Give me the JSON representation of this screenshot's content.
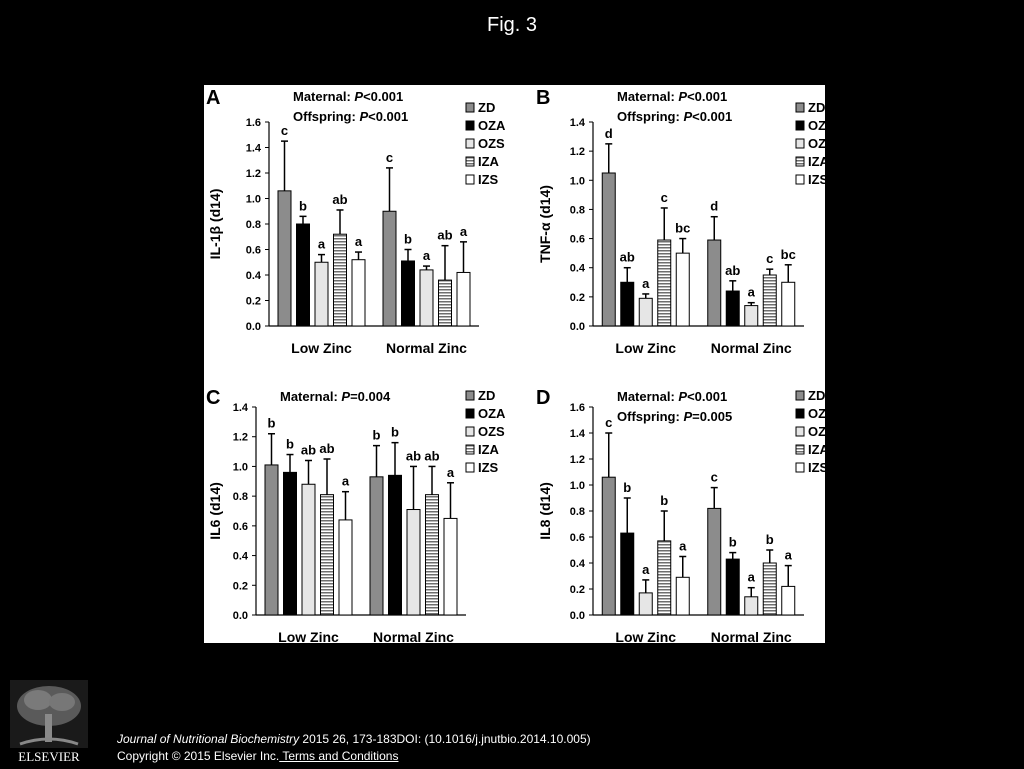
{
  "slide": {
    "title": "Fig. 3"
  },
  "citation": {
    "journal": "Journal of Nutritional Biochemistry",
    "details": " 2015 26, 173-183DOI: (10.1016/j.jnutbio.2014.10.005)",
    "copyright": "Copyright © 2015 Elsevier Inc.",
    "terms_link": " Terms and Conditions"
  },
  "logo": {
    "text": "ELSEVIER",
    "icon": "elsevier-tree-logo"
  },
  "legend_entries": [
    "ZD",
    "OZA",
    "OZS",
    "IZA",
    "IZS"
  ],
  "series_fills": {
    "ZD": "#8c8c8c",
    "OZA": "#000000",
    "OZS": "#e6e6e6",
    "IZA": "hatched-gray",
    "IZS": "#ffffff"
  },
  "chart_data": [
    {
      "panel": "A",
      "type": "bar",
      "stats": [
        {
          "prefix": "Maternal: ",
          "p": "P",
          "value": "<0.001"
        },
        {
          "prefix": "Offspring: ",
          "p": "P",
          "value": "<0.001"
        }
      ],
      "ylabel": "IL-1β (d14)",
      "ylim": [
        0,
        1.6
      ],
      "yticks": [
        "0.0",
        "0.2",
        "0.4",
        "0.6",
        "0.8",
        "1.0",
        "1.2",
        "1.4",
        "1.6"
      ],
      "categories": [
        "Low Zinc",
        "Normal Zinc"
      ],
      "series": [
        {
          "name": "ZD",
          "values": [
            1.06,
            0.9
          ],
          "errors": [
            0.39,
            0.34
          ],
          "letters": [
            "c",
            "c"
          ]
        },
        {
          "name": "OZA",
          "values": [
            0.8,
            0.51
          ],
          "errors": [
            0.06,
            0.09
          ],
          "letters": [
            "b",
            "b"
          ]
        },
        {
          "name": "OZS",
          "values": [
            0.5,
            0.44
          ],
          "errors": [
            0.06,
            0.03
          ],
          "letters": [
            "a",
            "a"
          ]
        },
        {
          "name": "IZA",
          "values": [
            0.72,
            0.36
          ],
          "errors": [
            0.19,
            0.27
          ],
          "letters": [
            "ab",
            "ab"
          ]
        },
        {
          "name": "IZS",
          "values": [
            0.52,
            0.42
          ],
          "errors": [
            0.06,
            0.24
          ],
          "letters": [
            "a",
            "a"
          ]
        }
      ]
    },
    {
      "panel": "B",
      "type": "bar",
      "stats": [
        {
          "prefix": "Maternal: ",
          "p": "P",
          "value": "<0.001"
        },
        {
          "prefix": "Offspring: ",
          "p": "P",
          "value": "<0.001"
        }
      ],
      "ylabel": "TNF-α (d14)",
      "ylim": [
        0,
        1.4
      ],
      "yticks": [
        "0.0",
        "0.2",
        "0.4",
        "0.6",
        "0.8",
        "1.0",
        "1.2",
        "1.4"
      ],
      "categories": [
        "Low Zinc",
        "Normal Zinc"
      ],
      "series": [
        {
          "name": "ZD",
          "values": [
            1.05,
            0.59
          ],
          "errors": [
            0.2,
            0.16
          ],
          "letters": [
            "d",
            "d"
          ]
        },
        {
          "name": "OZA",
          "values": [
            0.3,
            0.24
          ],
          "errors": [
            0.1,
            0.07
          ],
          "letters": [
            "ab",
            "ab"
          ]
        },
        {
          "name": "OZS",
          "values": [
            0.19,
            0.14
          ],
          "errors": [
            0.03,
            0.02
          ],
          "letters": [
            "a",
            "a"
          ]
        },
        {
          "name": "IZA",
          "values": [
            0.59,
            0.35
          ],
          "errors": [
            0.22,
            0.04
          ],
          "letters": [
            "c",
            "c"
          ]
        },
        {
          "name": "IZS",
          "values": [
            0.5,
            0.3
          ],
          "errors": [
            0.1,
            0.12
          ],
          "letters": [
            "bc",
            "bc"
          ]
        }
      ]
    },
    {
      "panel": "C",
      "type": "bar",
      "stats": [
        {
          "prefix": "Maternal: ",
          "p": "P",
          "value": "=0.004"
        }
      ],
      "ylabel": "IL6 (d14)",
      "ylim": [
        0,
        1.4
      ],
      "yticks": [
        "0.0",
        "0.2",
        "0.4",
        "0.6",
        "0.8",
        "1.0",
        "1.2",
        "1.4"
      ],
      "categories": [
        "Low Zinc",
        "Normal Zinc"
      ],
      "series": [
        {
          "name": "ZD",
          "values": [
            1.01,
            0.93
          ],
          "errors": [
            0.21,
            0.21
          ],
          "letters": [
            "b",
            "b"
          ]
        },
        {
          "name": "OZA",
          "values": [
            0.96,
            0.94
          ],
          "errors": [
            0.12,
            0.22
          ],
          "letters": [
            "b",
            "b"
          ]
        },
        {
          "name": "OZS",
          "values": [
            0.88,
            0.71
          ],
          "errors": [
            0.16,
            0.29
          ],
          "letters": [
            "ab",
            "ab"
          ]
        },
        {
          "name": "IZA",
          "values": [
            0.81,
            0.81
          ],
          "errors": [
            0.24,
            0.19
          ],
          "letters": [
            "ab",
            "ab"
          ]
        },
        {
          "name": "IZS",
          "values": [
            0.64,
            0.65
          ],
          "errors": [
            0.19,
            0.24
          ],
          "letters": [
            "a",
            "a"
          ]
        }
      ]
    },
    {
      "panel": "D",
      "type": "bar",
      "stats": [
        {
          "prefix": "Maternal: ",
          "p": "P",
          "value": "<0.001"
        },
        {
          "prefix": "Offspring: ",
          "p": "P",
          "value": "=0.005"
        }
      ],
      "ylabel": "IL8 (d14)",
      "ylim": [
        0,
        1.6
      ],
      "yticks": [
        "0.0",
        "0.2",
        "0.4",
        "0.6",
        "0.8",
        "1.0",
        "1.2",
        "1.4",
        "1.6"
      ],
      "categories": [
        "Low Zinc",
        "Normal Zinc"
      ],
      "series": [
        {
          "name": "ZD",
          "values": [
            1.06,
            0.82
          ],
          "errors": [
            0.34,
            0.16
          ],
          "letters": [
            "c",
            "c"
          ]
        },
        {
          "name": "OZA",
          "values": [
            0.63,
            0.43
          ],
          "errors": [
            0.27,
            0.05
          ],
          "letters": [
            "b",
            "b"
          ]
        },
        {
          "name": "OZS",
          "values": [
            0.17,
            0.14
          ],
          "errors": [
            0.1,
            0.07
          ],
          "letters": [
            "a",
            "a"
          ]
        },
        {
          "name": "IZA",
          "values": [
            0.57,
            0.4
          ],
          "errors": [
            0.23,
            0.1
          ],
          "letters": [
            "b",
            "b"
          ]
        },
        {
          "name": "IZS",
          "values": [
            0.29,
            0.22
          ],
          "errors": [
            0.16,
            0.16
          ],
          "letters": [
            "a",
            "a"
          ]
        }
      ]
    }
  ]
}
